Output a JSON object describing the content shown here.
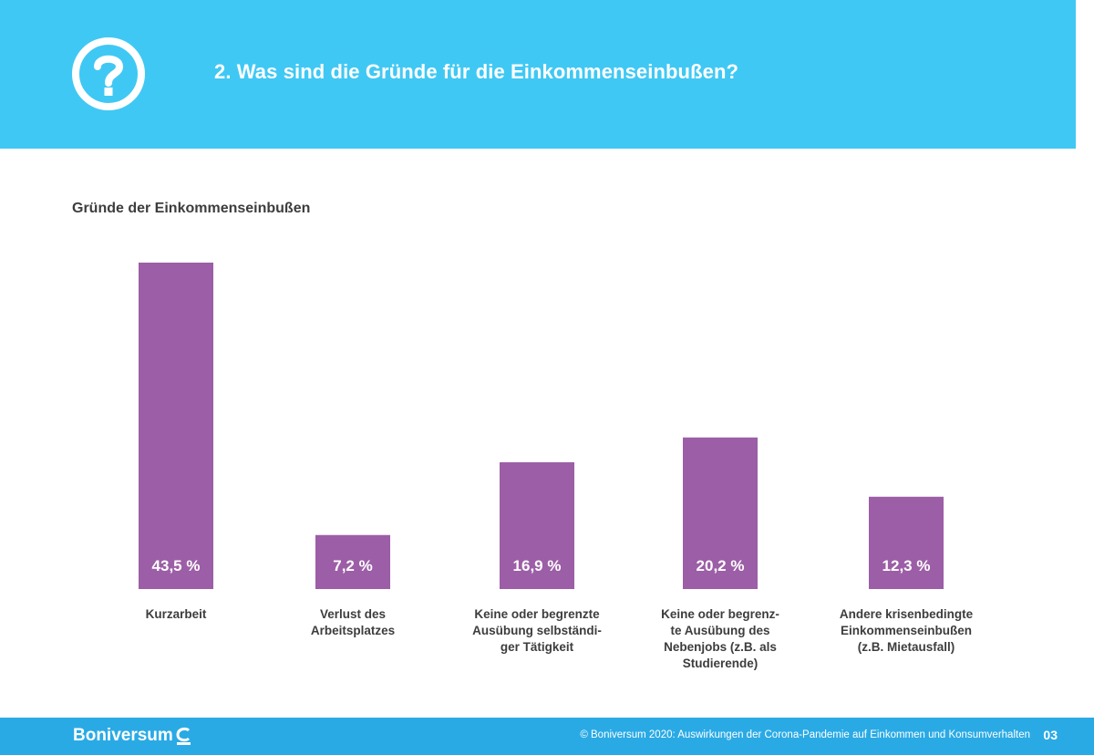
{
  "header": {
    "title": "2. Was sind die Gründe für die Einkommenseinbußen?",
    "icon": "question-circle-icon",
    "background": "#40c8f4"
  },
  "chart_data": {
    "type": "bar",
    "title": "Gründe der Einkommenseinbußen",
    "categories": [
      [
        "Kurzarbeit"
      ],
      [
        "Verlust des",
        "Arbeitsplatzes"
      ],
      [
        "Keine oder begrenzte",
        "Ausübung selbständi-",
        "ger Tätigkeit"
      ],
      [
        "Keine oder begrenz-",
        "te Ausübung des",
        "Nebenjobs (z.B. als",
        "Studierende)"
      ],
      [
        "Andere krisenbedingte",
        "Einkommenseinbußen",
        "(z.B. Mietausfall)"
      ]
    ],
    "values": [
      43.5,
      7.2,
      16.9,
      20.2,
      12.3
    ],
    "value_labels": [
      "43,5 %",
      "7,2 %",
      "16,9 %",
      "20,2 %",
      "12,3 %"
    ],
    "unit": "%",
    "ylim": [
      0,
      43.5
    ],
    "bar_color": "#9c5ea6",
    "grid": false,
    "legend": "none"
  },
  "footer": {
    "brand": "Boniversum",
    "brand_icon": "boniversum-logo-icon",
    "text": "© Boniversum 2020: Auswirkungen der Corona-Pandemie auf Einkommen und Konsumverhalten",
    "page": "03",
    "background": "#2aaae5"
  }
}
